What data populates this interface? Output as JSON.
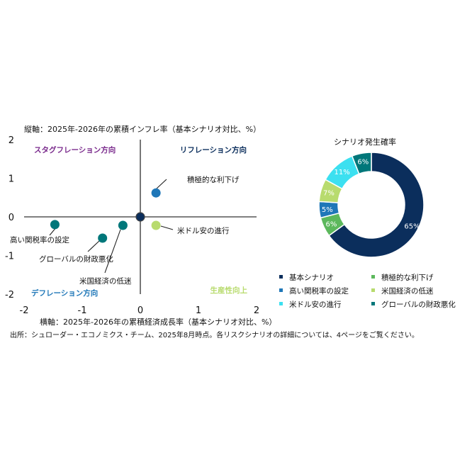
{
  "texts": {
    "y_axis_title": "縦軸：2025年-2026年の累積インフレ率（基本シナリオ対比、%）",
    "x_axis_title": "横軸：2025年-2026年の累積経済成長率（基本シナリオ対比、%）",
    "source": "出所：シュローダー・エコノミクス・チーム、2025年8月時点。各リスクシナリオの詳細については、4ページをご覧ください。",
    "donut_title": "シナリオ発生確率"
  },
  "colors": {
    "navy": "#0b2e5c",
    "blue": "#1f77b8",
    "teal": "#00777a",
    "green": "#5cb85c",
    "lightgreen": "#b8db6e",
    "cyan": "#3ce0f0",
    "purple": "#7a2a8c",
    "grey_axis": "#555555"
  },
  "chart_data": [
    {
      "type": "scatter",
      "xlabel": "横軸：2025年-2026年の累積経済成長率（基本シナリオ対比、%）",
      "ylabel": "縦軸：2025年-2026年の累積インフレ率（基本シナリオ対比、%）",
      "xlim": [
        -2,
        2
      ],
      "ylim": [
        -2,
        2
      ],
      "x_ticks": [
        -2,
        -1,
        0,
        1,
        2
      ],
      "y_ticks": [
        2,
        1,
        0,
        -1,
        -2
      ],
      "grid": false,
      "quadrant_labels": [
        {
          "text": "スタグフレーション方向",
          "position": "top-left",
          "color": "#7a2a8c"
        },
        {
          "text": "リフレーション方向",
          "position": "top-right",
          "color": "#0b2e5c"
        },
        {
          "text": "デフレーション方向",
          "position": "bottom-left",
          "color": "#1f77b8"
        },
        {
          "text": "生産性向上",
          "position": "bottom-right",
          "color": "#b8db6e"
        }
      ],
      "points": [
        {
          "name": "基本シナリオ",
          "x": 0.0,
          "y": 0.0,
          "color": "#0b2e5c"
        },
        {
          "name": "積極的な利下げ",
          "x": 0.27,
          "y": 0.62,
          "color": "#1f77b8"
        },
        {
          "name": "米ドル安の進行",
          "x": 0.27,
          "y": -0.22,
          "color": "#b8db6e"
        },
        {
          "name": "高い関税率の設定",
          "x": -1.47,
          "y": -0.2,
          "color": "#00777a"
        },
        {
          "name": "グローバルの財政悪化",
          "x": -0.65,
          "y": -0.55,
          "color": "#00777a"
        },
        {
          "name": "米国経済の低迷",
          "x": -0.3,
          "y": -0.22,
          "color": "#00777a"
        }
      ]
    },
    {
      "type": "pie",
      "title": "シナリオ発生確率",
      "slices": [
        {
          "label": "基本シナリオ",
          "value": 65,
          "text": "65%",
          "color": "#0b2e5c"
        },
        {
          "label": "積極的な利下げ",
          "value": 6,
          "text": "6%",
          "color": "#5cb85c"
        },
        {
          "label": "高い関税率の設定",
          "value": 5,
          "text": "5%",
          "color": "#1f77b8"
        },
        {
          "label": "米国経済の低迷",
          "value": 7,
          "text": "7%",
          "color": "#b8db6e"
        },
        {
          "label": "米ドル安の進行",
          "value": 11,
          "text": "11%",
          "color": "#3ce0f0"
        },
        {
          "label": "グローバルの財政悪化",
          "value": 6,
          "text": "6%",
          "color": "#00777a"
        }
      ],
      "legend": [
        {
          "label": "基本シナリオ",
          "color": "#0b2e5c"
        },
        {
          "label": "積極的な利下げ",
          "color": "#5cb85c"
        },
        {
          "label": "高い関税率の設定",
          "color": "#1f77b8"
        },
        {
          "label": "米国経済の低迷",
          "color": "#b8db6e"
        },
        {
          "label": "米ドル安の進行",
          "color": "#3ce0f0"
        },
        {
          "label": "グローバルの財政悪化",
          "color": "#00777a"
        }
      ]
    }
  ]
}
